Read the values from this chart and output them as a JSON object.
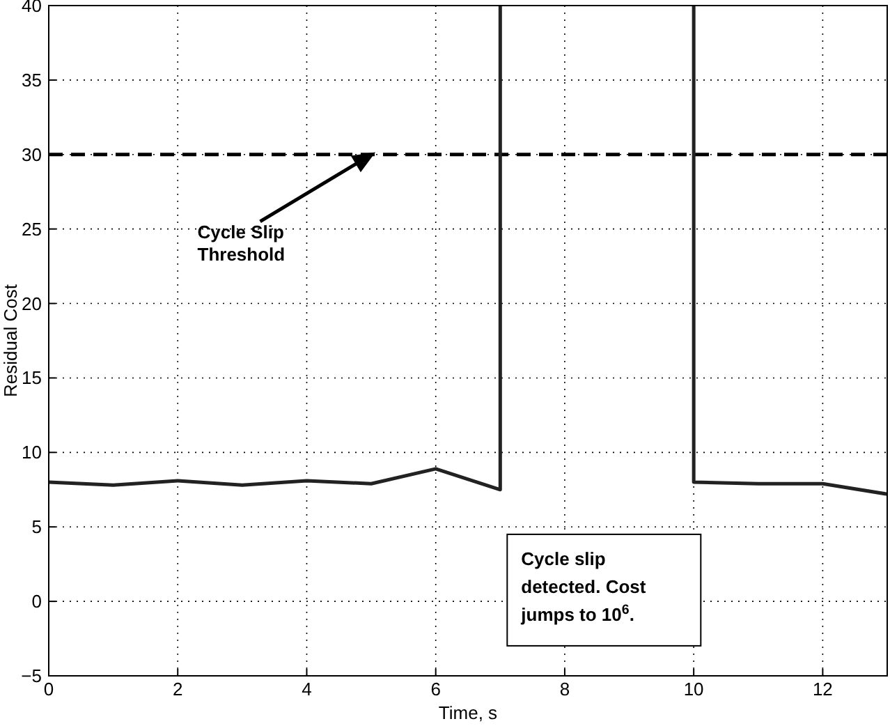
{
  "chart_data": {
    "type": "line",
    "xlabel": "Time, s",
    "ylabel": "Residual Cost",
    "x": [
      0,
      1,
      2,
      3,
      4,
      5,
      6,
      7,
      7,
      8.5,
      10,
      10,
      11,
      12,
      13
    ],
    "series": [
      {
        "color": "#222222",
        "values": [
          8.0,
          7.8,
          8.1,
          7.8,
          8.1,
          7.9,
          8.9,
          7.5,
          40,
          null,
          40,
          8.0,
          7.9,
          7.9,
          7.2
        ]
      }
    ],
    "xlim": [
      0,
      13
    ],
    "xticks": [
      0,
      2,
      4,
      6,
      8,
      10,
      12
    ],
    "ylim": [
      -5,
      40
    ],
    "yticks": [
      {
        "value": -5,
        "label": "−5"
      },
      0,
      5,
      10,
      15,
      20,
      25,
      30,
      35,
      40
    ],
    "grid": true,
    "line_style": "solid",
    "marker": "none",
    "ref_lines": [
      {
        "axis": "y",
        "value": 30,
        "color": "#000000",
        "line_style": "dashed",
        "label": "Cycle Slip Threshold"
      }
    ],
    "annotations": [
      "Cycle slip detected. Cost jumps to 10$^{6}$."
    ]
  }
}
